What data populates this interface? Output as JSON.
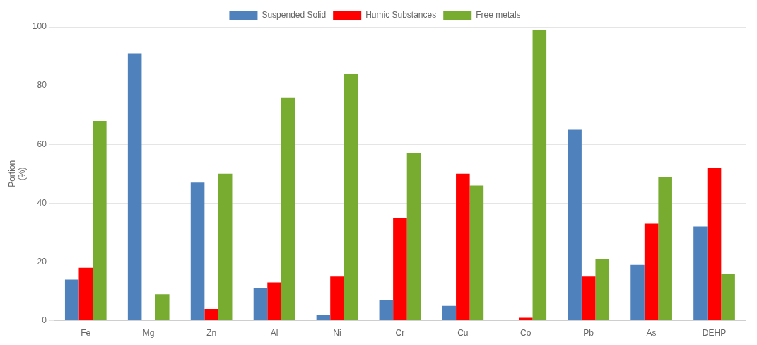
{
  "chart_data": {
    "type": "bar",
    "categories": [
      "Fe",
      "Mg",
      "Zn",
      "Al",
      "Ni",
      "Cr",
      "Cu",
      "Co",
      "Pb",
      "As",
      "DEHP"
    ],
    "series": [
      {
        "name": "Suspended Solid",
        "color": "#4F81BD",
        "values": [
          14,
          91,
          47,
          11,
          2,
          7,
          5,
          0,
          65,
          19,
          32
        ]
      },
      {
        "name": "Humic Substances",
        "color": "#FF0000",
        "values": [
          18,
          0,
          4,
          13,
          15,
          35,
          50,
          1,
          15,
          33,
          52
        ]
      },
      {
        "name": "Free metals",
        "color": "#77AC30",
        "values": [
          68,
          9,
          50,
          76,
          84,
          57,
          46,
          99,
          21,
          49,
          16
        ]
      }
    ],
    "ylabel": "Portion\n(%)",
    "ylim": [
      0,
      100
    ],
    "yticks": [
      0,
      20,
      40,
      60,
      80,
      100
    ],
    "grid": "y",
    "legend": "top"
  }
}
